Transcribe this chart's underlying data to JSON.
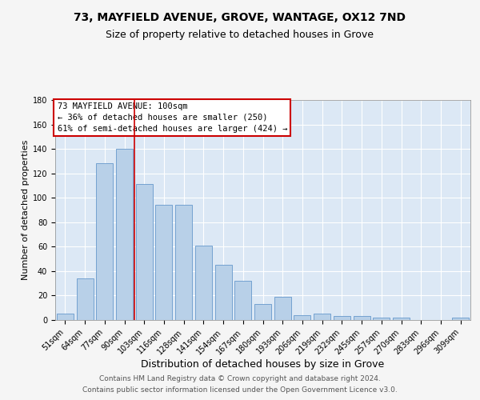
{
  "title1": "73, MAYFIELD AVENUE, GROVE, WANTAGE, OX12 7ND",
  "title2": "Size of property relative to detached houses in Grove",
  "xlabel": "Distribution of detached houses by size in Grove",
  "ylabel": "Number of detached properties",
  "categories": [
    "51sqm",
    "64sqm",
    "77sqm",
    "90sqm",
    "103sqm",
    "116sqm",
    "128sqm",
    "141sqm",
    "154sqm",
    "167sqm",
    "180sqm",
    "193sqm",
    "206sqm",
    "219sqm",
    "232sqm",
    "245sqm",
    "257sqm",
    "270sqm",
    "283sqm",
    "296sqm",
    "309sqm"
  ],
  "values": [
    5,
    34,
    128,
    140,
    111,
    94,
    94,
    61,
    45,
    32,
    13,
    19,
    4,
    5,
    3,
    3,
    2,
    2,
    0,
    0,
    2
  ],
  "bar_color": "#b8d0e8",
  "bar_edge_color": "#6699cc",
  "vline_color": "#cc0000",
  "vline_x": 3.5,
  "annotation_text": "73 MAYFIELD AVENUE: 100sqm\n← 36% of detached houses are smaller (250)\n61% of semi-detached houses are larger (424) →",
  "annotation_box_color": "#ffffff",
  "annotation_box_edge_color": "#cc0000",
  "ylim": [
    0,
    180
  ],
  "yticks": [
    0,
    20,
    40,
    60,
    80,
    100,
    120,
    140,
    160,
    180
  ],
  "background_color": "#dce8f5",
  "grid_color": "#ffffff",
  "fig_bg_color": "#f5f5f5",
  "footer1": "Contains HM Land Registry data © Crown copyright and database right 2024.",
  "footer2": "Contains public sector information licensed under the Open Government Licence v3.0.",
  "title1_fontsize": 10,
  "title2_fontsize": 9,
  "xlabel_fontsize": 9,
  "ylabel_fontsize": 8,
  "tick_fontsize": 7,
  "annotation_fontsize": 7.5,
  "footer_fontsize": 6.5
}
